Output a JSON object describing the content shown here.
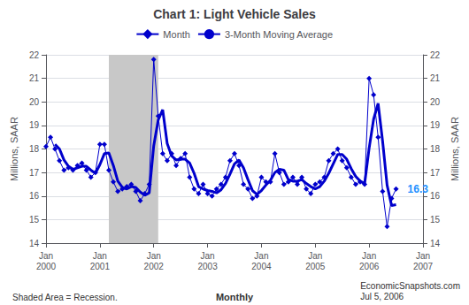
{
  "chart_data": {
    "type": "line",
    "title": "Chart 1: Light Vehicle Sales",
    "ylabel": "Millions, SAAR",
    "y2label": "Millions, SAAR",
    "categories": [
      "Jan\n2000",
      null,
      null,
      null,
      null,
      null,
      null,
      null,
      null,
      null,
      null,
      null,
      "Jan\n2001",
      null,
      null,
      null,
      null,
      null,
      null,
      null,
      null,
      null,
      null,
      null,
      "Jan\n2002",
      null,
      null,
      null,
      null,
      null,
      null,
      null,
      null,
      null,
      null,
      null,
      "Jan\n2003",
      null,
      null,
      null,
      null,
      null,
      null,
      null,
      null,
      null,
      null,
      null,
      "Jan\n2004",
      null,
      null,
      null,
      null,
      null,
      null,
      null,
      null,
      null,
      null,
      null,
      "Jan\n2005",
      null,
      null,
      null,
      null,
      null,
      null,
      null,
      null,
      null,
      null,
      null,
      "Jan\n2006",
      null,
      null,
      null,
      null,
      null,
      null,
      null,
      null,
      null,
      null,
      null,
      "Jan\n2007"
    ],
    "series": [
      {
        "name": "Month",
        "color": "#0000CC",
        "marker": "diamond",
        "values": [
          18.1,
          18.5,
          18.0,
          17.5,
          17.1,
          17.2,
          17.1,
          17.3,
          17.4,
          17.1,
          16.8,
          17.0,
          18.2,
          18.2,
          17.1,
          16.6,
          16.2,
          16.3,
          16.4,
          16.5,
          16.2,
          15.8,
          16.1,
          16.5,
          21.8,
          19.4,
          17.8,
          17.5,
          17.8,
          17.3,
          17.6,
          17.8,
          16.8,
          16.3,
          16.1,
          16.5,
          16.1,
          16.0,
          16.3,
          16.5,
          16.8,
          17.5,
          17.8,
          17.3,
          16.5,
          16.3,
          15.9,
          16.0,
          16.8,
          16.6,
          16.6,
          17.8,
          17.0,
          16.5,
          16.6,
          16.8,
          16.5,
          16.8,
          16.3,
          16.1,
          16.5,
          16.6,
          16.8,
          17.5,
          17.8,
          18.0,
          17.5,
          17.2,
          16.8,
          16.5,
          16.6,
          16.5,
          21.0,
          20.3,
          18.5,
          16.2,
          14.7,
          15.9,
          16.3,
          null,
          null,
          null,
          null,
          null,
          null
        ]
      },
      {
        "name": "3-Month Moving Average",
        "color": "#0000CC",
        "marker": "none",
        "values": [
          null,
          null,
          18.2,
          18.0,
          17.5333,
          17.2667,
          17.1333,
          17.2,
          17.2667,
          17.2667,
          17.1,
          16.9667,
          17.3333,
          17.8,
          17.8333,
          17.3,
          16.6333,
          16.3667,
          16.3,
          16.4,
          16.3667,
          16.1667,
          16.0333,
          16.1333,
          18.1333,
          19.2333,
          19.6667,
          18.2333,
          17.7,
          17.5333,
          17.5667,
          17.5667,
          17.4,
          16.9667,
          16.4,
          16.3,
          16.2333,
          16.2,
          16.1333,
          16.2667,
          16.5333,
          16.9333,
          17.3667,
          17.5333,
          17.2,
          16.7,
          16.2333,
          16.0667,
          16.2333,
          16.4667,
          16.6667,
          17.0,
          17.1333,
          17.1,
          16.7,
          16.6333,
          16.6333,
          16.7,
          16.5333,
          16.4,
          16.3,
          16.4,
          16.6333,
          16.9667,
          17.3667,
          17.7667,
          17.7667,
          17.5667,
          17.1667,
          16.8333,
          16.6333,
          16.5333,
          18.0333,
          19.2667,
          19.9333,
          18.3333,
          16.4667,
          15.6,
          15.6333,
          null,
          null,
          null,
          null,
          null,
          null
        ]
      }
    ],
    "shaded": {
      "start": 14,
      "end": 25,
      "color": "#C8C8C8"
    },
    "annotations": [
      {
        "text": "16.3",
        "series": "Month",
        "color": "#1E90FF"
      }
    ],
    "footer": [
      "Shaded Area = Recession.",
      "Monthly",
      "EconomicSnapshots.com\nJul 5, 2006"
    ],
    "ylim": [
      14,
      22
    ],
    "yticks": [
      14,
      15,
      16,
      17,
      18,
      19,
      20,
      21,
      22
    ],
    "y2lim": [
      14,
      22
    ],
    "y2ticks": [
      14,
      15,
      16,
      17,
      18,
      19,
      20,
      21,
      22
    ],
    "grid": true,
    "legend": "top"
  }
}
